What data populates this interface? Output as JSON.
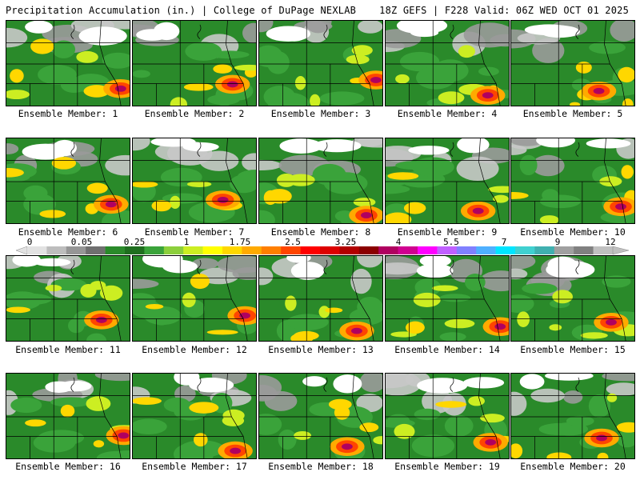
{
  "header": {
    "left": "Precipitation Accumulation (in.) | College of DuPage NEXLAB",
    "right": "18Z GEFS | F228 Valid: 06Z WED OCT 01 2025"
  },
  "colorbar": {
    "tick_labels": [
      "0",
      "0.05",
      "0.25",
      "1",
      "1.75",
      "2.5",
      "3.25",
      "4",
      "5.5",
      "7",
      "9",
      "12"
    ],
    "colors": [
      "#e2e2e2",
      "#bdbdbd",
      "#969696",
      "#6f6f6f",
      "#2a8a2a",
      "#1f6e1f",
      "#3aa33a",
      "#8ccf3c",
      "#ccee22",
      "#ffff00",
      "#ffd700",
      "#ffaa00",
      "#ff7f00",
      "#ff4500",
      "#ff0000",
      "#dd0000",
      "#b20000",
      "#8b0000",
      "#b00060",
      "#d00090",
      "#ff00ff",
      "#c060ff",
      "#8080ff",
      "#4fb0ff",
      "#00e5ff",
      "#40d0d0",
      "#40b0b0",
      "#a0a0a0",
      "#808080",
      "#c0c0c0"
    ]
  },
  "members": [
    {
      "label": "Ensemble Member: 1"
    },
    {
      "label": "Ensemble Member: 2"
    },
    {
      "label": "Ensemble Member: 3"
    },
    {
      "label": "Ensemble Member: 4"
    },
    {
      "label": "Ensemble Member: 5"
    },
    {
      "label": "Ensemble Member: 6"
    },
    {
      "label": "Ensemble Member: 7"
    },
    {
      "label": "Ensemble Member: 8"
    },
    {
      "label": "Ensemble Member: 9"
    },
    {
      "label": "Ensemble Member: 10"
    },
    {
      "label": "Ensemble Member: 11"
    },
    {
      "label": "Ensemble Member: 12"
    },
    {
      "label": "Ensemble Member: 13"
    },
    {
      "label": "Ensemble Member: 14"
    },
    {
      "label": "Ensemble Member: 15"
    },
    {
      "label": "Ensemble Member: 16"
    },
    {
      "label": "Ensemble Member: 17"
    },
    {
      "label": "Ensemble Member: 18"
    },
    {
      "label": "Ensemble Member: 19"
    },
    {
      "label": "Ensemble Member: 20"
    }
  ]
}
